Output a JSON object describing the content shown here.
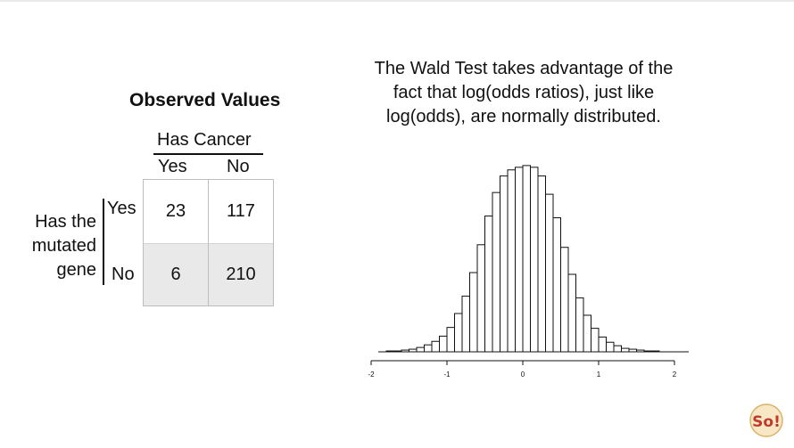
{
  "observed": {
    "title": "Observed Values",
    "col_group": "Has Cancer",
    "col_headers": [
      "Yes",
      "No"
    ],
    "row_group_lines": [
      "Has the",
      "mutated",
      "gene"
    ],
    "row_headers": [
      "Yes",
      "No"
    ],
    "cells": [
      [
        "23",
        "117"
      ],
      [
        "6",
        "210"
      ]
    ]
  },
  "wald": {
    "text": "The Wald Test takes advantage of the fact that log(odds ratios), just like log(odds), are normally distributed."
  },
  "chart_data": {
    "type": "bar",
    "xlim": [
      -2,
      2
    ],
    "ticks": [
      "-2",
      "-1",
      "0",
      "1",
      "2"
    ],
    "bin_width": 0.1,
    "bin_start": -2.0,
    "values": [
      0,
      0,
      1,
      1,
      2,
      3,
      5,
      8,
      12,
      18,
      28,
      44,
      64,
      91,
      123,
      156,
      183,
      202,
      209,
      212,
      214,
      212,
      202,
      181,
      154,
      120,
      89,
      62,
      42,
      27,
      17,
      11,
      7,
      4,
      3,
      2,
      1,
      1,
      0,
      0
    ],
    "ylim": [
      0,
      220
    ],
    "bar_fill": "#ffffff",
    "bar_stroke": "#111111"
  },
  "logo": {
    "text": "So!"
  }
}
